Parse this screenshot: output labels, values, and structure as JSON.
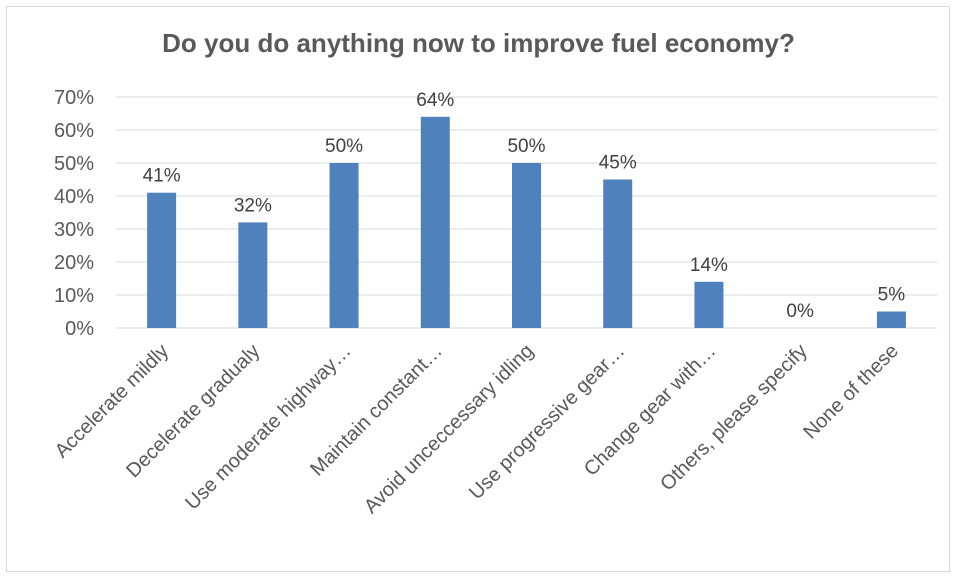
{
  "chart_data": {
    "type": "bar",
    "title": "Do you do anything now to improve fuel economy?",
    "categories": [
      "Accelerate mildly",
      "Decelerate gradualy",
      "Use moderate highway…",
      "Maintain constant…",
      "Avoid unceccessary idling",
      "Use progressive gear…",
      "Change gear with…",
      "Others, please specify",
      "None of these"
    ],
    "values": [
      0.41,
      0.32,
      0.5,
      0.64,
      0.5,
      0.45,
      0.14,
      0.0,
      0.05
    ],
    "data_labels": [
      "41%",
      "32%",
      "50%",
      "64%",
      "50%",
      "45%",
      "14%",
      "0%",
      "5%"
    ],
    "ylim": [
      0,
      0.7
    ],
    "y_ticks": [
      0,
      0.1,
      0.2,
      0.3,
      0.4,
      0.5,
      0.6,
      0.7
    ],
    "y_tick_labels": [
      "0%",
      "10%",
      "20%",
      "30%",
      "40%",
      "50%",
      "60%",
      "70%"
    ],
    "xlabel": "",
    "ylabel": "",
    "grid": true,
    "legend": "none",
    "bar_color": "#4f81bd",
    "grid_color": "#d9d9d9"
  }
}
